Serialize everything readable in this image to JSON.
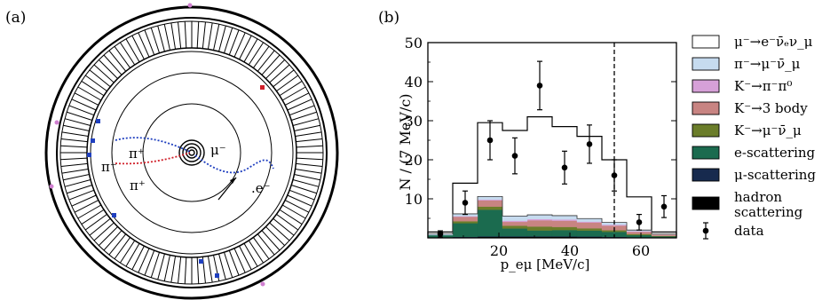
{
  "panel_a": {
    "label": "(a)",
    "annotations": {
      "pi_plus_top": "π⁺",
      "pi_minus": "π⁻",
      "pi_plus_bottom": "π⁺",
      "mu_minus": "μ⁻",
      "e_minus": ".e⁻"
    }
  },
  "panel_b": {
    "label": "(b)"
  },
  "chart_data": {
    "type": "bar",
    "bin_edges": [
      0,
      7,
      14,
      21,
      28,
      35,
      42,
      49,
      56,
      63,
      70
    ],
    "xlabel": "p_eμ [MeV/c]",
    "ylabel": "N / (7 MeV/c)",
    "xlim": [
      0,
      70
    ],
    "ylim": [
      0,
      50
    ],
    "xticks": [
      20,
      40,
      60
    ],
    "yticks": [
      10,
      20,
      30,
      40,
      50
    ],
    "cut_line_x": 52.5,
    "stack_order_bottom_to_top": [
      "hadron",
      "muscat",
      "escat",
      "kmunu",
      "k3body",
      "kpipi0",
      "pimunu"
    ],
    "series": [
      {
        "key": "total",
        "name": "μ⁻→e⁻ν̄ₑν_μ",
        "color": "#ffffff",
        "values": [
          1.5,
          14,
          29.5,
          27.5,
          31,
          28.5,
          26,
          20,
          10.5,
          1.5
        ]
      },
      {
        "key": "pimunu",
        "name": "π⁻→μ⁻ν̄_μ",
        "color": "#c6dbef",
        "values": [
          0.3,
          0.6,
          0.8,
          1.2,
          1.1,
          1.0,
          0.8,
          0.6,
          0.3,
          0.1
        ]
      },
      {
        "key": "kpipi0",
        "name": "K⁻→π⁻π⁰",
        "color": "#d6a0d8",
        "values": [
          0,
          0.1,
          0.2,
          0.3,
          0.3,
          0.3,
          0.2,
          0.2,
          0.1,
          0
        ]
      },
      {
        "key": "k3body",
        "name": "K⁻→3 body",
        "color": "#c88482",
        "values": [
          0,
          1.2,
          1.6,
          1.0,
          1.6,
          1.6,
          1.5,
          1.2,
          0.6,
          0.4
        ]
      },
      {
        "key": "kmunu",
        "name": "K⁻→μ⁻ν̄_μ",
        "color": "#6b7d2a",
        "values": [
          0,
          0.5,
          0.8,
          0.7,
          1.0,
          0.8,
          0.6,
          0.4,
          0.3,
          0.1
        ]
      },
      {
        "key": "escat",
        "name": "e-scattering",
        "color": "#1b6b4f",
        "values": [
          0.6,
          3.5,
          6.8,
          2.0,
          1.5,
          1.6,
          1.5,
          1.3,
          0.6,
          0.3
        ]
      },
      {
        "key": "muscat",
        "name": "μ-scattering",
        "color": "#172a4e",
        "values": [
          0,
          0.05,
          0.1,
          0.1,
          0.1,
          0.1,
          0.05,
          0.05,
          0,
          0
        ]
      },
      {
        "key": "hadron",
        "name": "hadron scattering",
        "color": "#000000",
        "values": [
          0.1,
          0.2,
          0.3,
          0.3,
          0.3,
          0.3,
          0.3,
          0.2,
          0.1,
          0.1
        ]
      }
    ],
    "data_points": {
      "name": "data",
      "x": [
        3.5,
        10.5,
        17.5,
        24.5,
        31.5,
        38.5,
        45.5,
        52.5,
        59.5,
        66.5
      ],
      "y": [
        1,
        9,
        25,
        21,
        39,
        18,
        24,
        16,
        4,
        8
      ],
      "err": [
        0.8,
        3,
        5,
        4.6,
        6.2,
        4.2,
        4.9,
        4,
        2,
        2.8
      ]
    },
    "legend": {
      "placement": "right",
      "entries": [
        {
          "label": "μ⁻→e⁻ν̄ₑν_μ",
          "color": "#ffffff"
        },
        {
          "label": "π⁻→μ⁻ν̄_μ",
          "color": "#c6dbef"
        },
        {
          "label": "K⁻→π⁻π⁰",
          "color": "#d6a0d8"
        },
        {
          "label": "K⁻→3 body",
          "color": "#c88482"
        },
        {
          "label": "K⁻→μ⁻ν̄_μ",
          "color": "#6b7d2a"
        },
        {
          "label": "e-scattering",
          "color": "#1b6b4f"
        },
        {
          "label": "μ-scattering",
          "color": "#172a4e"
        },
        {
          "label": "hadron",
          "label2": "scattering",
          "color": "#000000"
        },
        {
          "label": "data",
          "marker": "errorbar"
        }
      ]
    }
  }
}
